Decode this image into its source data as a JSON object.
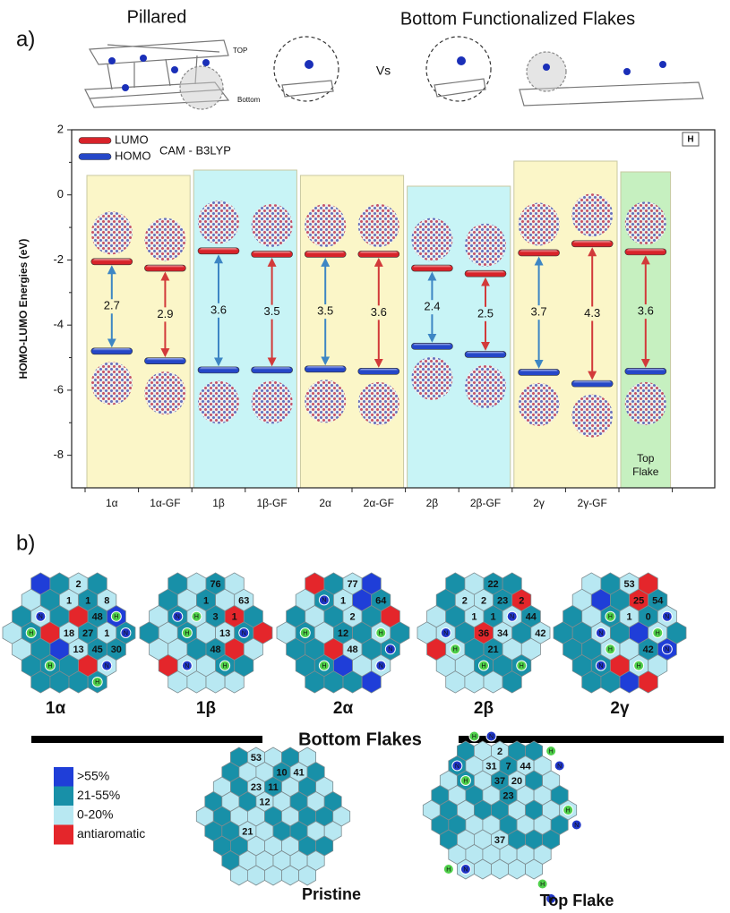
{
  "panel_a": {
    "label": "a)",
    "left_title": "Pillared",
    "vs": "Vs",
    "right_title": "Bottom Functionalized Flakes",
    "top_tag": "TOP",
    "bottom_tag": "Bottom"
  },
  "chart_data": {
    "type": "levels",
    "y_label": "HOMO-LUMO Energies (eV)",
    "categories": [
      "1α",
      "1α-GF",
      "1β",
      "1β-GF",
      "2α",
      "2α-GF",
      "2β",
      "2β-GF",
      "2γ",
      "2γ-GF",
      null
    ],
    "series": [
      {
        "name": "LUMO",
        "color": "#d8232a",
        "values": [
          -2.05,
          -2.25,
          -1.72,
          -1.82,
          -1.82,
          -1.82,
          -2.25,
          -2.42,
          -1.78,
          -1.5,
          -1.75
        ]
      },
      {
        "name": "HOMO",
        "color": "#2547c8",
        "values": [
          -4.8,
          -5.1,
          -5.38,
          -5.38,
          -5.35,
          -5.42,
          -4.65,
          -4.9,
          -5.45,
          -5.8,
          -5.42
        ]
      }
    ],
    "gaps": [
      2.7,
      2.9,
      3.6,
      3.5,
      3.5,
      3.6,
      2.4,
      2.5,
      3.7,
      4.3,
      3.6
    ],
    "method": "CAM - B3LYP",
    "corner_tag": "H",
    "top_flake_label": [
      "Top",
      "Flake"
    ],
    "ylim": [
      -9,
      2
    ],
    "yticks": [
      -8,
      -6,
      -4,
      -2,
      0,
      2
    ],
    "legend": "upper left"
  },
  "panel_b": {
    "label": "b)",
    "atoms": {
      "n": "N",
      "h": "H"
    },
    "flakes": [
      {
        "name": "1α",
        "numbers": [
          "2",
          "1",
          "1",
          "8",
          "48",
          "18",
          "27",
          "1",
          "13",
          "45",
          "30"
        ]
      },
      {
        "name": "1β",
        "numbers": [
          "76",
          "63",
          "1",
          "3",
          "1",
          "13",
          "48"
        ]
      },
      {
        "name": "2α",
        "numbers": [
          "77",
          "64",
          "1",
          "2",
          "12",
          "48"
        ]
      },
      {
        "name": "2β",
        "numbers": [
          "22",
          "2",
          "2",
          "23",
          "2",
          "1",
          "1",
          "1",
          "44",
          "36",
          "34",
          "42",
          "21"
        ]
      },
      {
        "name": "2γ",
        "numbers": [
          "53",
          "25",
          "54",
          "1",
          "0",
          "42"
        ]
      }
    ],
    "bottom_caption": "Bottom Flakes",
    "pristine": {
      "name": "Pristine",
      "numbers": [
        "53",
        "10",
        "41",
        "23",
        "11",
        "12",
        "21"
      ]
    },
    "top_flake": {
      "name": "Top Flake",
      "numbers": [
        "2",
        "31",
        "7",
        "44",
        "37",
        "20",
        "23",
        "37"
      ]
    },
    "legend": [
      ">55%",
      "21-55%",
      "0-20%",
      "antiaromatic"
    ]
  }
}
